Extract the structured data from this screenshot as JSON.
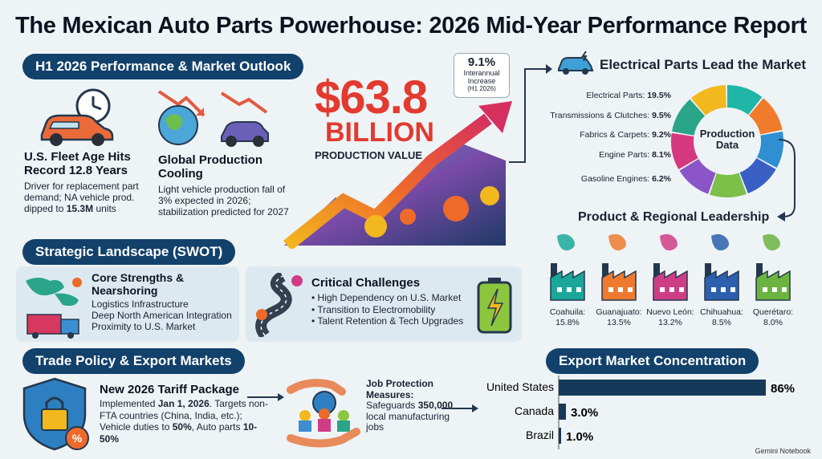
{
  "title": "The Mexican Auto Parts Powerhouse: 2026 Mid-Year Performance Report",
  "outlook": {
    "header": "H1 2026 Performance & Market Outlook",
    "fleet": {
      "title": "U.S. Fleet Age Hits Record 12.8 Years",
      "text1": "Driver for replacement part demand; NA vehicle prod. dipped to",
      "highlight": "15.3M",
      "text2": "units"
    },
    "production": {
      "title": "Global Production Cooling",
      "text": "Light vehicle production fall of 3% expected in 2026; stabilization predicted for 2027"
    },
    "headline_value": "$63.8",
    "headline_unit": "BILLION",
    "headline_label": "PRODUCTION VALUE",
    "growth": {
      "value": "9.1%",
      "label": "Interannual Increase",
      "period": "(H1 2026)"
    }
  },
  "electrical": {
    "header": "Electrical Parts Lead the Market",
    "center_label": "Production Data",
    "items": [
      {
        "label": "Electrical Parts:",
        "value": "19.5%"
      },
      {
        "label": "Transmissions & Clutches:",
        "value": "9.5%"
      },
      {
        "label": "Fabrics & Carpets:",
        "value": "9.2%"
      },
      {
        "label": "Engine Parts:",
        "value": "8.1%"
      },
      {
        "label": "Gasoline Engines:",
        "value": "6.2%"
      }
    ],
    "colors": [
      "#1fb6a8",
      "#f07b2a",
      "#2f8fd0",
      "#3a5fc4",
      "#7cc04a",
      "#8b55c8",
      "#d6387f",
      "#2aa58a",
      "#f2b81e"
    ]
  },
  "regional": {
    "header": "Product & Regional Leadership",
    "regions": [
      {
        "name": "Coahuila:",
        "value": "15.8%",
        "color": "#1aa79a"
      },
      {
        "name": "Guanajuato:",
        "value": "13.5%",
        "color": "#ee7a30"
      },
      {
        "name": "Nuevo León:",
        "value": "13.2%",
        "color": "#cf3d86"
      },
      {
        "name": "Chihuahua:",
        "value": "8.5%",
        "color": "#2c5fae"
      },
      {
        "name": "Querétaro:",
        "value": "8.0%",
        "color": "#6cb33f"
      }
    ]
  },
  "swot": {
    "header": "Strategic Landscape (SWOT)",
    "strengths": {
      "title": "Core Strengths & Nearshoring",
      "items": [
        "Logistics Infrastructure",
        "Deep North American Integration",
        "Proximity to U.S. Market"
      ]
    },
    "challenges": {
      "title": "Critical Challenges",
      "items": [
        "High Dependency on U.S. Market",
        "Transition to Electromobility",
        "Talent Retention & Tech Upgrades"
      ]
    }
  },
  "trade": {
    "header": "Trade Policy & Export Markets",
    "tariff": {
      "title": "New 2026 Tariff Package",
      "implemented_prefix": "Implemented",
      "implemented_date": "Jan 1, 2026",
      "text1": "Targets non-FTA countries (China, India, etc.); Vehicle duties to",
      "vehicle": "50%",
      "text2": ", Auto parts",
      "parts": "10-50%"
    },
    "jobs": {
      "title": "Job Protection Measures:",
      "prefix": "Safeguards",
      "count": "350,000",
      "suffix": "local manufacturing jobs"
    }
  },
  "export": {
    "header": "Export Market Concentration",
    "chart_data": {
      "type": "bar",
      "categories": [
        "United States",
        "Canada",
        "Brazil"
      ],
      "values": [
        86,
        3.0,
        1.0
      ],
      "labels": [
        "86%",
        "3.0%",
        "1.0%"
      ],
      "xlim": [
        0,
        100
      ],
      "color": "#16395a"
    }
  },
  "footer": "Gemini Notebook"
}
